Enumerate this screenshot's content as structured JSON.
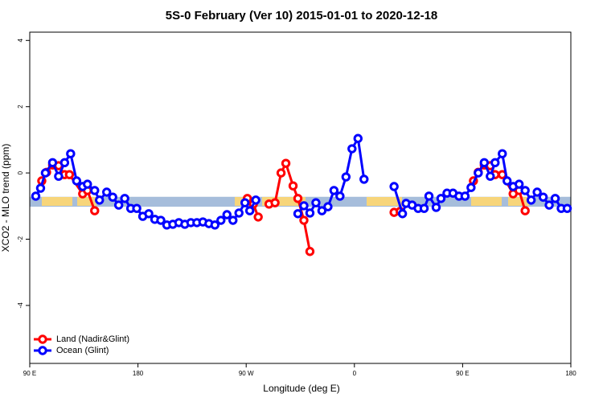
{
  "chart_data": {
    "type": "line",
    "title": "5S-0 February (Ver 10)   2015-01-01 to 2020-12-18",
    "x_label": "Longitude (deg E)",
    "y_label": "XCO2 - MLO trend (ppm)",
    "xlim": [
      90,
      540
    ],
    "xticks": [
      {
        "value": 90,
        "label": "90 E"
      },
      {
        "value": 180,
        "label": "180"
      },
      {
        "value": 270,
        "label": "90 W"
      },
      {
        "value": 360,
        "label": "0"
      },
      {
        "value": 450,
        "label": "90 E"
      },
      {
        "value": 540,
        "label": "180"
      }
    ],
    "ylim": [
      -5.75,
      4.25
    ],
    "yticks": [
      -4,
      -2,
      0,
      2,
      4
    ],
    "band_range": [
      -1.02,
      -0.72
    ],
    "band_color": "#a6bddb",
    "legend": "bottom-left",
    "series": [
      {
        "name": "Land (Nadir&Glint)",
        "color": "#ff0000",
        "x": [
          100,
          104,
          109,
          114,
          119,
          123,
          134,
          138,
          144,
          null,
          271,
          276,
          280,
          null,
          289,
          294,
          299,
          303,
          309,
          313,
          318,
          323,
          null,
          393,
          398,
          null,
          459,
          463,
          468,
          473,
          477,
          483,
          492,
          497,
          502
        ],
        "values": [
          -0.24,
          0.02,
          0.24,
          0.22,
          -0.05,
          -0.05,
          -0.63,
          -0.53,
          -1.14,
          null,
          -0.77,
          -0.94,
          -1.33,
          null,
          -0.94,
          -0.9,
          0,
          0.29,
          -0.39,
          -0.77,
          -1.43,
          -2.37,
          null,
          -1.19,
          -1.16,
          null,
          -0.24,
          0.02,
          0.24,
          0.22,
          -0.05,
          -0.05,
          -0.63,
          -0.53,
          -1.14
        ]
      },
      {
        "name": "Ocean (Glint)",
        "color": "#0000ff",
        "x": [
          95,
          99,
          103,
          109,
          114,
          119,
          124,
          129,
          134,
          138,
          144,
          148,
          154,
          159,
          164,
          169,
          174,
          179,
          184,
          189,
          194,
          199,
          204,
          209,
          214,
          219,
          224,
          229,
          234,
          239,
          244,
          249,
          254,
          259,
          264,
          269,
          273,
          278,
          null,
          313,
          318,
          323,
          328,
          333,
          338,
          343,
          348,
          353,
          358,
          363,
          368,
          null,
          393,
          400,
          403,
          408,
          413,
          418,
          422,
          428,
          432,
          437,
          442,
          447,
          452,
          457,
          463,
          468,
          473,
          477,
          483,
          487,
          492,
          497,
          502,
          507,
          512,
          517,
          522,
          527,
          532,
          537
        ],
        "values": [
          -0.7,
          -0.46,
          0,
          0.31,
          -0.1,
          0.31,
          0.58,
          -0.24,
          -0.41,
          -0.34,
          -0.53,
          -0.82,
          -0.58,
          -0.73,
          -0.97,
          -0.77,
          -1.07,
          -1.07,
          -1.31,
          -1.23,
          -1.4,
          -1.43,
          -1.57,
          -1.55,
          -1.5,
          -1.55,
          -1.5,
          -1.5,
          -1.48,
          -1.53,
          -1.57,
          -1.43,
          -1.26,
          -1.43,
          -1.21,
          -0.9,
          -1.14,
          -0.82,
          null,
          -1.23,
          -0.99,
          -1.21,
          -0.9,
          -1.14,
          -1.02,
          -0.53,
          -0.7,
          -0.12,
          0.73,
          1.04,
          -0.19,
          null,
          -0.41,
          -1.23,
          -0.92,
          -0.97,
          -1.07,
          -1.07,
          -0.7,
          -1.04,
          -0.77,
          -0.61,
          -0.61,
          -0.7,
          -0.7,
          -0.44,
          0,
          0.31,
          -0.1,
          0.31,
          0.58,
          -0.24,
          -0.41,
          -0.34,
          -0.53,
          -0.82,
          -0.58,
          -0.73,
          -0.97,
          -0.77,
          -1.07,
          -1.07
        ]
      }
    ]
  }
}
